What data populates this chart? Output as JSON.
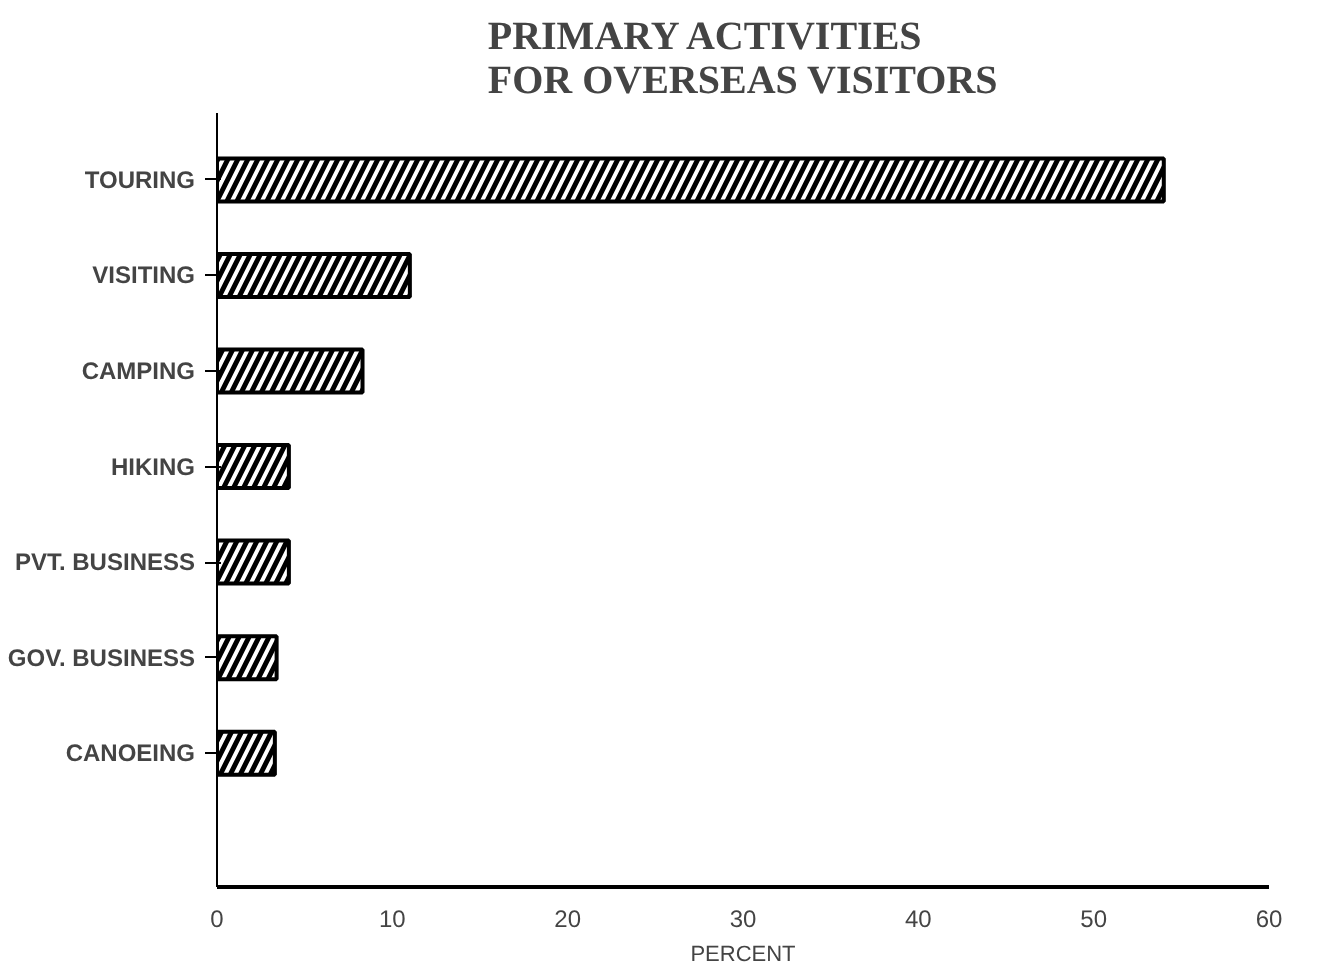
{
  "chart_data": {
    "type": "bar",
    "orientation": "horizontal",
    "title": "PRIMARY ACTIVITIES\nFOR OVERSEAS VISITORS",
    "xlabel": "PERCENT",
    "categories": [
      "TOURING",
      "VISITING",
      "CAMPING",
      "HIKING",
      "PVT. BUSINESS",
      "GOV. BUSINESS",
      "CANOEING"
    ],
    "values": [
      54,
      11,
      8.3,
      4.1,
      4.1,
      3.4,
      3.3
    ],
    "color": "#000000",
    "xlim": [
      0,
      60
    ],
    "xticks": [
      0,
      10,
      20,
      30,
      40,
      50,
      60
    ],
    "grid": false
  }
}
